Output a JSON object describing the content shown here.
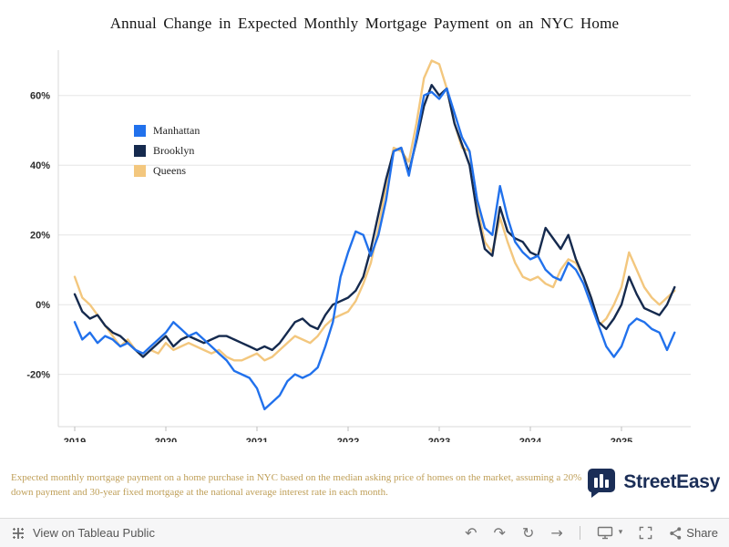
{
  "title": "Annual Change in Expected Monthly Mortgage Payment on an NYC Home",
  "caption": "Expected monthly mortgage payment on a home purchase in NYC based on the median asking price of homes on the market, assuming a 20% down payment and 30-year fixed mortgage at the national average interest rate in each month.",
  "brand": {
    "name": "StreetEasy"
  },
  "colors": {
    "manhattan": "#2171ec",
    "brooklyn": "#152a4e",
    "queens": "#f3c77e",
    "caption": "#bf9f58",
    "brand_navy": "#1b2e57",
    "toolbar_bg": "#f6f6f7"
  },
  "toolbar": {
    "view_label": "View on Tableau Public",
    "share_label": "Share",
    "glyphs": {
      "undo": "↶",
      "redo": "↷",
      "replay": "↻",
      "forward": "→",
      "caret": "▾"
    },
    "icons": [
      "tableau-logo",
      "undo",
      "redo",
      "replay",
      "forward",
      "device-preview",
      "fullscreen",
      "share"
    ]
  },
  "chart_data": {
    "type": "line",
    "title": "Annual Change in Expected Monthly Mortgage Payment on an NYC Home",
    "xlabel": "",
    "ylabel": "",
    "x_start_year": 2019,
    "frequency": "monthly",
    "xlim": [
      2018.82,
      2025.76
    ],
    "ylim": [
      -35,
      73
    ],
    "xticks": [
      2019,
      2020,
      2021,
      2022,
      2023,
      2024,
      2025
    ],
    "yticks": [
      -20,
      0,
      20,
      40,
      60
    ],
    "grid": "horizontal",
    "legend_position": "inside-top-left",
    "series": [
      {
        "name": "Manhattan",
        "color": "#2171ec",
        "values": [
          -5,
          -10,
          -8,
          -11,
          -9,
          -10,
          -12,
          -11,
          -13,
          -14,
          -12,
          -10,
          -8,
          -5,
          -7,
          -9,
          -8,
          -10,
          -12,
          -14,
          -16,
          -19,
          -20,
          -21,
          -24,
          -30,
          -28,
          -26,
          -22,
          -20,
          -21,
          -20,
          -18,
          -12,
          -5,
          8,
          15,
          21,
          20,
          14,
          20,
          30,
          44,
          45,
          37,
          48,
          60,
          61,
          59,
          62,
          55,
          48,
          44,
          30,
          22,
          20,
          34,
          25,
          18,
          15,
          13,
          14,
          10,
          8,
          7,
          12,
          10,
          6,
          0,
          -6,
          -12,
          -15,
          -12,
          -6,
          -4,
          -5,
          -7,
          -8,
          -13,
          -8
        ]
      },
      {
        "name": "Brooklyn",
        "color": "#152a4e",
        "values": [
          3,
          -2,
          -4,
          -3,
          -6,
          -8,
          -9,
          -11,
          -13,
          -15,
          -13,
          -11,
          -9,
          -12,
          -10,
          -9,
          -10,
          -11,
          -10,
          -9,
          -9,
          -10,
          -11,
          -12,
          -13,
          -12,
          -13,
          -11,
          -8,
          -5,
          -4,
          -6,
          -7,
          -3,
          0,
          1,
          2,
          4,
          8,
          16,
          26,
          36,
          44,
          45,
          38,
          47,
          57,
          63,
          60,
          62,
          52,
          46,
          40,
          26,
          16,
          14,
          28,
          21,
          19,
          18,
          15,
          14,
          22,
          19,
          16,
          20,
          13,
          8,
          2,
          -5,
          -7,
          -4,
          0,
          8,
          3,
          -1,
          -2,
          -3,
          0,
          5
        ]
      },
      {
        "name": "Queens",
        "color": "#f3c77e",
        "values": [
          8,
          2,
          0,
          -3,
          -6,
          -9,
          -12,
          -10,
          -13,
          -15,
          -13,
          -14,
          -11,
          -13,
          -12,
          -11,
          -12,
          -13,
          -14,
          -13,
          -15,
          -16,
          -16,
          -15,
          -14,
          -16,
          -15,
          -13,
          -11,
          -9,
          -10,
          -11,
          -9,
          -6,
          -4,
          -3,
          -2,
          1,
          6,
          12,
          22,
          34,
          45,
          44,
          41,
          52,
          65,
          70,
          69,
          62,
          52,
          45,
          44,
          28,
          18,
          15,
          25,
          18,
          12,
          8,
          7,
          8,
          6,
          5,
          10,
          13,
          12,
          8,
          2,
          -6,
          -4,
          0,
          5,
          15,
          10,
          5,
          2,
          0,
          2,
          4
        ]
      }
    ]
  }
}
